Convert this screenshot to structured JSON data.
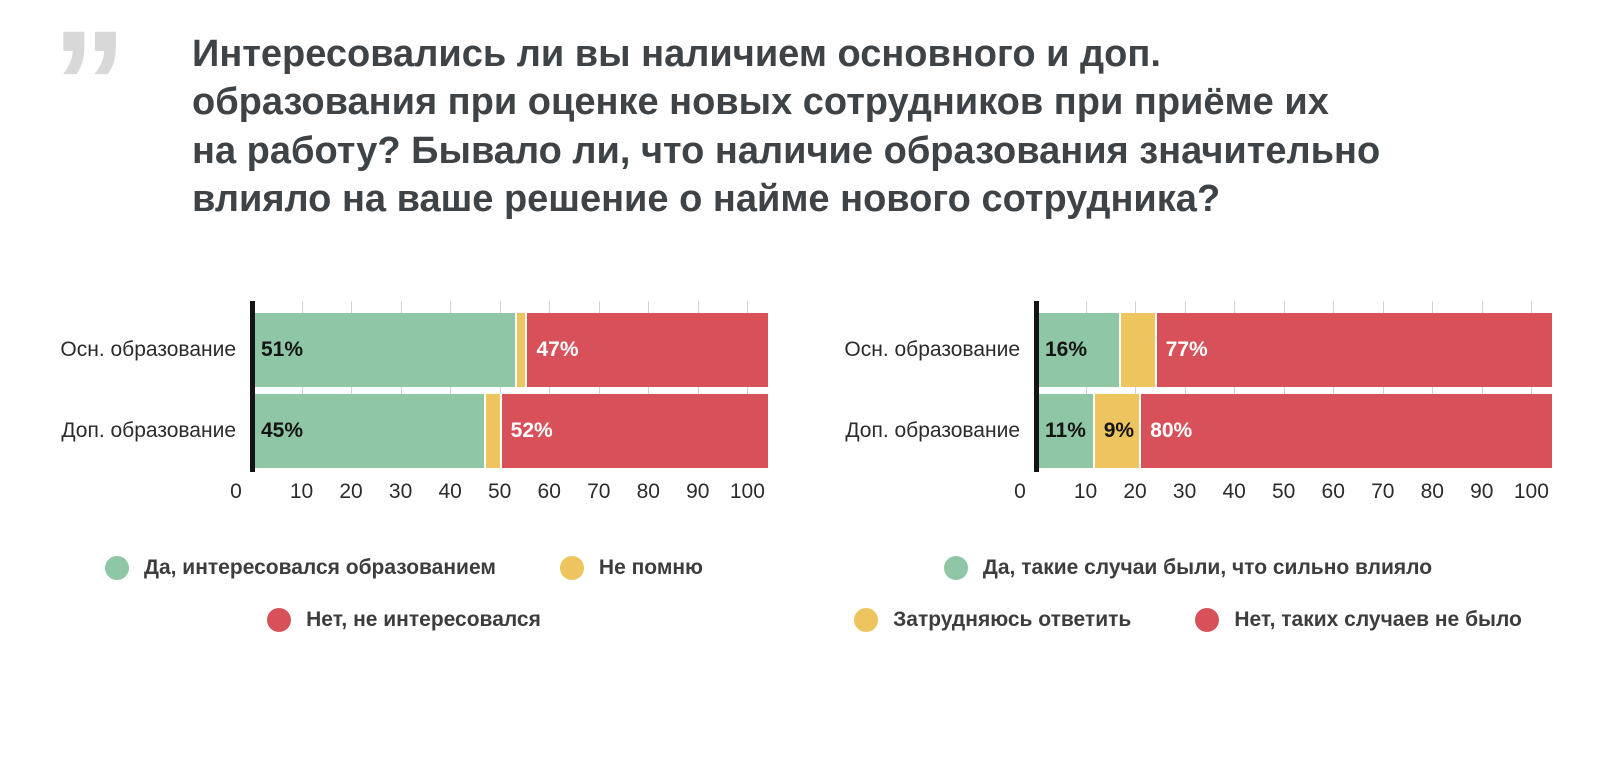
{
  "header": {
    "quote_mark": "”",
    "title": "Интересовались ли вы наличием основного и доп. образования при оценке новых сотрудников при приёме их на работу? Бывало ли, что наличие образования значительно влияло на ваше решение о найме нового сотрудника?"
  },
  "colors": {
    "green": "#8FC6A6",
    "yellow": "#EDC45E",
    "red": "#D8515A",
    "label_dark": "#141414",
    "label_light": "#ffffff",
    "axis": "#141414",
    "gridline": "#d2d2d2"
  },
  "chart_data": [
    {
      "type": "bar",
      "orientation": "horizontal-stacked",
      "categories": [
        "Осн. образование",
        "Доп. образование"
      ],
      "series": [
        {
          "name": "Да, интересовался образованием",
          "color_key": "green",
          "label_color": "dark",
          "values": [
            51,
            45
          ],
          "labels": [
            "51%",
            "45%"
          ]
        },
        {
          "name": "Не помню",
          "color_key": "yellow",
          "label_color": "dark",
          "values": [
            2,
            3
          ],
          "labels": [
            "",
            ""
          ]
        },
        {
          "name": "Нет, не интересовался",
          "color_key": "red",
          "label_color": "light",
          "values": [
            47,
            52
          ],
          "labels": [
            "47%",
            "52%"
          ]
        }
      ],
      "x_ticks": [
        0,
        10,
        20,
        30,
        40,
        50,
        60,
        70,
        80,
        90,
        100
      ],
      "xlim": [
        0,
        100
      ],
      "grid": true,
      "legend_position": "bottom",
      "legend_rows": [
        [
          0,
          1
        ],
        [
          2
        ]
      ]
    },
    {
      "type": "bar",
      "orientation": "horizontal-stacked",
      "categories": [
        "Осн. образование",
        "Доп. образование"
      ],
      "series": [
        {
          "name": "Да, такие случаи были, что сильно влияло",
          "color_key": "green",
          "label_color": "dark",
          "values": [
            16,
            11
          ],
          "labels": [
            "16%",
            "11%"
          ]
        },
        {
          "name": "Затрудняюсь ответить",
          "color_key": "yellow",
          "label_color": "dark",
          "values": [
            7,
            9
          ],
          "labels": [
            "",
            "9%"
          ]
        },
        {
          "name": "Нет, таких случаев не было",
          "color_key": "red",
          "label_color": "light",
          "values": [
            77,
            80
          ],
          "labels": [
            "77%",
            "80%"
          ]
        }
      ],
      "x_ticks": [
        0,
        10,
        20,
        30,
        40,
        50,
        60,
        70,
        80,
        90,
        100
      ],
      "xlim": [
        0,
        100
      ],
      "grid": true,
      "legend_position": "bottom",
      "legend_rows": [
        [
          0
        ],
        [
          1,
          2
        ]
      ]
    }
  ]
}
